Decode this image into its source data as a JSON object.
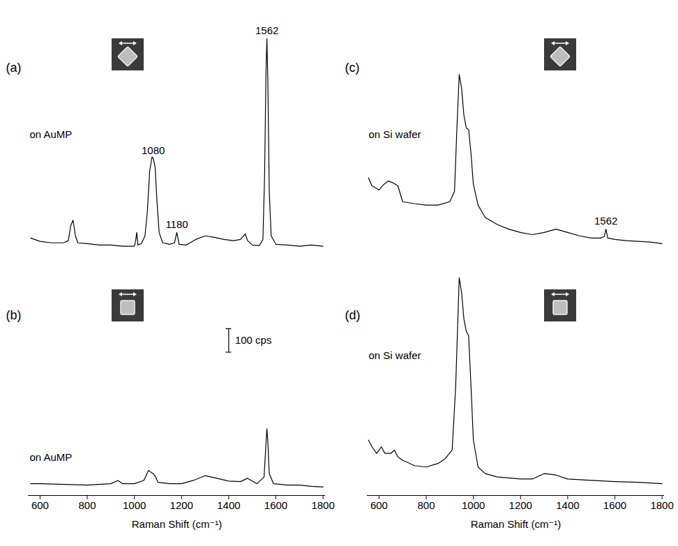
{
  "chart_data": [
    {
      "type": "line",
      "panel": "(a)",
      "note": "on AuMP",
      "color": "#000000",
      "xlim": [
        550,
        1810
      ],
      "ylim": [
        150,
        1150
      ],
      "tick_labels": false,
      "x": [
        560,
        600,
        650,
        700,
        720,
        730,
        740,
        750,
        760,
        800,
        850,
        900,
        950,
        1000,
        1005,
        1010,
        1015,
        1030,
        1045,
        1055,
        1065,
        1075,
        1080,
        1088,
        1095,
        1105,
        1120,
        1150,
        1170,
        1180,
        1190,
        1220,
        1260,
        1300,
        1340,
        1380,
        1420,
        1450,
        1470,
        1480,
        1500,
        1530,
        1545,
        1552,
        1558,
        1562,
        1566,
        1572,
        1580,
        1600,
        1650,
        1700,
        1750,
        1800
      ],
      "values": [
        220,
        206,
        200,
        200,
        209,
        271,
        294,
        229,
        200,
        197,
        191,
        191,
        186,
        186,
        206,
        243,
        191,
        197,
        229,
        329,
        500,
        557,
        551,
        514,
        386,
        243,
        200,
        194,
        200,
        243,
        194,
        191,
        214,
        229,
        223,
        214,
        209,
        214,
        237,
        209,
        191,
        189,
        214,
        471,
        900,
        1049,
        871,
        414,
        229,
        194,
        191,
        186,
        191,
        186
      ],
      "annotations": [
        {
          "text": "1080",
          "x": 1080
        },
        {
          "text": "1180",
          "x": 1180
        },
        {
          "text": "1562",
          "x": 1562
        }
      ]
    },
    {
      "type": "line",
      "panel": "(b)",
      "note": "on AuMP",
      "color": "#000000",
      "xlim": [
        550,
        1810
      ],
      "ylim": [
        150,
        1100
      ],
      "tick_labels": "x",
      "xticks": [
        600,
        800,
        1000,
        1200,
        1400,
        1600,
        1800
      ],
      "xlabel": "Raman Shift (cm⁻¹)",
      "x": [
        560,
        600,
        700,
        800,
        900,
        930,
        950,
        1000,
        1040,
        1060,
        1070,
        1080,
        1090,
        1100,
        1150,
        1200,
        1250,
        1300,
        1350,
        1400,
        1450,
        1480,
        1520,
        1550,
        1558,
        1562,
        1566,
        1572,
        1590,
        1650,
        1700,
        1750,
        1800
      ],
      "values": [
        200,
        200,
        197,
        194,
        200,
        214,
        200,
        200,
        214,
        257,
        249,
        243,
        229,
        206,
        200,
        200,
        214,
        234,
        223,
        211,
        209,
        223,
        200,
        229,
        371,
        434,
        377,
        243,
        200,
        194,
        194,
        189,
        186
      ],
      "scale_bar": {
        "x": 1400,
        "from": 760,
        "value": 100,
        "label": "100 cps"
      }
    },
    {
      "type": "line",
      "panel": "(c)",
      "note": "on Si wafer",
      "color": "#000000",
      "xlim": [
        550,
        1810
      ],
      "ylim": [
        150,
        1150
      ],
      "tick_labels": false,
      "x": [
        555,
        570,
        600,
        620,
        640,
        660,
        680,
        700,
        750,
        800,
        850,
        900,
        920,
        930,
        940,
        950,
        960,
        970,
        980,
        990,
        1000,
        1020,
        1050,
        1100,
        1150,
        1200,
        1250,
        1300,
        1350,
        1400,
        1450,
        1500,
        1540,
        1555,
        1562,
        1570,
        1600,
        1650,
        1700,
        1750,
        1800
      ],
      "values": [
        471,
        437,
        420,
        443,
        457,
        449,
        437,
        371,
        363,
        357,
        357,
        371,
        414,
        671,
        900,
        843,
        729,
        677,
        671,
        571,
        443,
        357,
        306,
        277,
        257,
        243,
        234,
        243,
        257,
        243,
        229,
        220,
        220,
        226,
        257,
        220,
        214,
        209,
        206,
        203,
        197
      ],
      "annotations": [
        {
          "text": "1562",
          "x": 1562
        }
      ]
    },
    {
      "type": "line",
      "panel": "(d)",
      "note": "on Si wafer",
      "color": "#000000",
      "xlim": [
        550,
        1810
      ],
      "ylim": [
        150,
        1100
      ],
      "tick_labels": "x",
      "xticks": [
        600,
        800,
        1000,
        1200,
        1400,
        1600,
        1800
      ],
      "xlabel": "Raman Shift (cm⁻¹)",
      "x": [
        555,
        570,
        590,
        610,
        625,
        650,
        665,
        680,
        700,
        750,
        800,
        850,
        880,
        910,
        925,
        940,
        950,
        960,
        970,
        980,
        990,
        1000,
        1020,
        1050,
        1100,
        1200,
        1250,
        1300,
        1350,
        1400,
        1500,
        1600,
        1700,
        1800
      ],
      "values": [
        386,
        357,
        329,
        357,
        329,
        329,
        343,
        314,
        300,
        277,
        271,
        286,
        306,
        343,
        614,
        1077,
        1014,
        900,
        849,
        829,
        614,
        386,
        271,
        243,
        229,
        220,
        220,
        243,
        237,
        220,
        214,
        209,
        206,
        200
      ]
    }
  ]
}
